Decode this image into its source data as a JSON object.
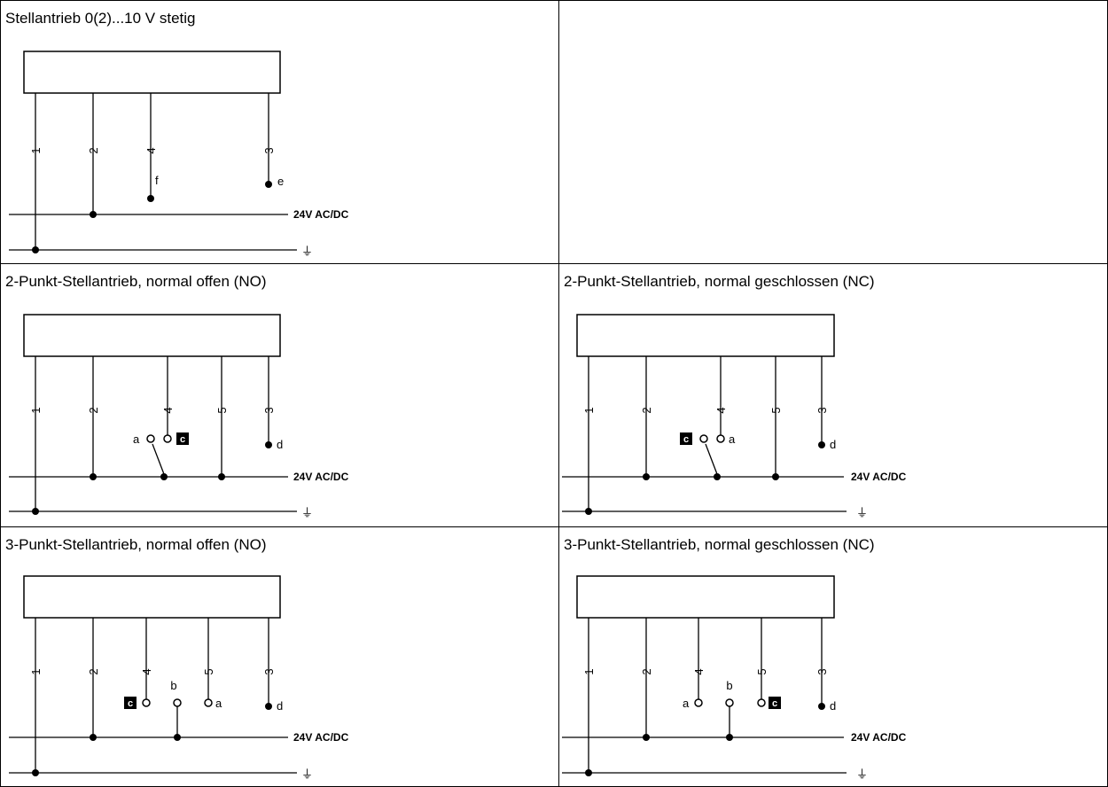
{
  "panels": {
    "p1": {
      "title": "Stellantrieb 0(2)...10 V stetig",
      "terminals": [
        "1",
        "2",
        "4",
        "3"
      ],
      "contacts": [
        "f",
        "e"
      ],
      "bus_label": "24V AC/DC"
    },
    "p2": {
      "title": "",
      "terminals": [],
      "contacts": [],
      "bus_label": ""
    },
    "p3": {
      "title": "2-Punkt-Stellantrieb, normal offen (NO)",
      "terminals": [
        "1",
        "2",
        "4",
        "5",
        "3"
      ],
      "contacts": [
        "a",
        "c",
        "d"
      ],
      "bus_label": "24V AC/DC"
    },
    "p4": {
      "title": "2-Punkt-Stellantrieb, normal geschlossen (NC)",
      "terminals": [
        "1",
        "2",
        "4",
        "5",
        "3"
      ],
      "contacts": [
        "c",
        "a",
        "d"
      ],
      "bus_label": "24V AC/DC"
    },
    "p5": {
      "title": "3-Punkt-Stellantrieb, normal offen (NO)",
      "terminals": [
        "1",
        "2",
        "4",
        "5",
        "3"
      ],
      "contacts": [
        "c",
        "b",
        "a",
        "d"
      ],
      "bus_label": "24V AC/DC"
    },
    "p6": {
      "title": "3-Punkt-Stellantrieb, normal geschlossen (NC)",
      "terminals": [
        "1",
        "2",
        "4",
        "5",
        "3"
      ],
      "contacts": [
        "a",
        "b",
        "c",
        "d"
      ],
      "bus_label": "24V AC/DC"
    }
  },
  "ground_symbol": "⏚"
}
